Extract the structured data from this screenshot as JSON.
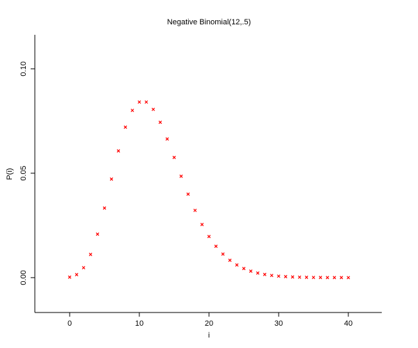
{
  "chart_data": {
    "type": "scatter",
    "title": "Negative Binomial(12,.5)",
    "x_label": "i",
    "y_label": "P(i)",
    "color": "#ff0000",
    "x": [
      0,
      1,
      2,
      3,
      4,
      5,
      6,
      7,
      8,
      9,
      10,
      11,
      12,
      13,
      14,
      15,
      16,
      17,
      18,
      19,
      20,
      21,
      22,
      23,
      24,
      25,
      26,
      27,
      28,
      29,
      30,
      31,
      32,
      33,
      34,
      35,
      36,
      37,
      38,
      39,
      40
    ],
    "values": [
      0.00024,
      0.00146,
      0.00476,
      0.01111,
      0.02083,
      0.03333,
      0.04721,
      0.0607,
      0.07208,
      0.08009,
      0.08409,
      0.08409,
      0.08059,
      0.07439,
      0.06642,
      0.05756,
      0.04857,
      0.04,
      0.03222,
      0.02544,
      0.01971,
      0.01502,
      0.01127,
      0.00833,
      0.00607,
      0.00437,
      0.00311,
      0.00219,
      0.00152,
      0.00105,
      0.00072,
      0.00049,
      0.00033,
      0.00022,
      0.00014,
      9e-05,
      6e-05,
      4e-05,
      3e-05,
      2e-05,
      1e-05
    ],
    "xlim": [
      -5,
      44.8
    ],
    "ylim": [
      -0.0167,
      0.1163
    ],
    "xticks": [
      0,
      10,
      20,
      30,
      40
    ],
    "yticks": [
      {
        "value": 0,
        "label": "0.00"
      },
      {
        "value": 0.05,
        "label": "0.05"
      },
      {
        "value": 0.1,
        "label": "0.10"
      }
    ]
  }
}
